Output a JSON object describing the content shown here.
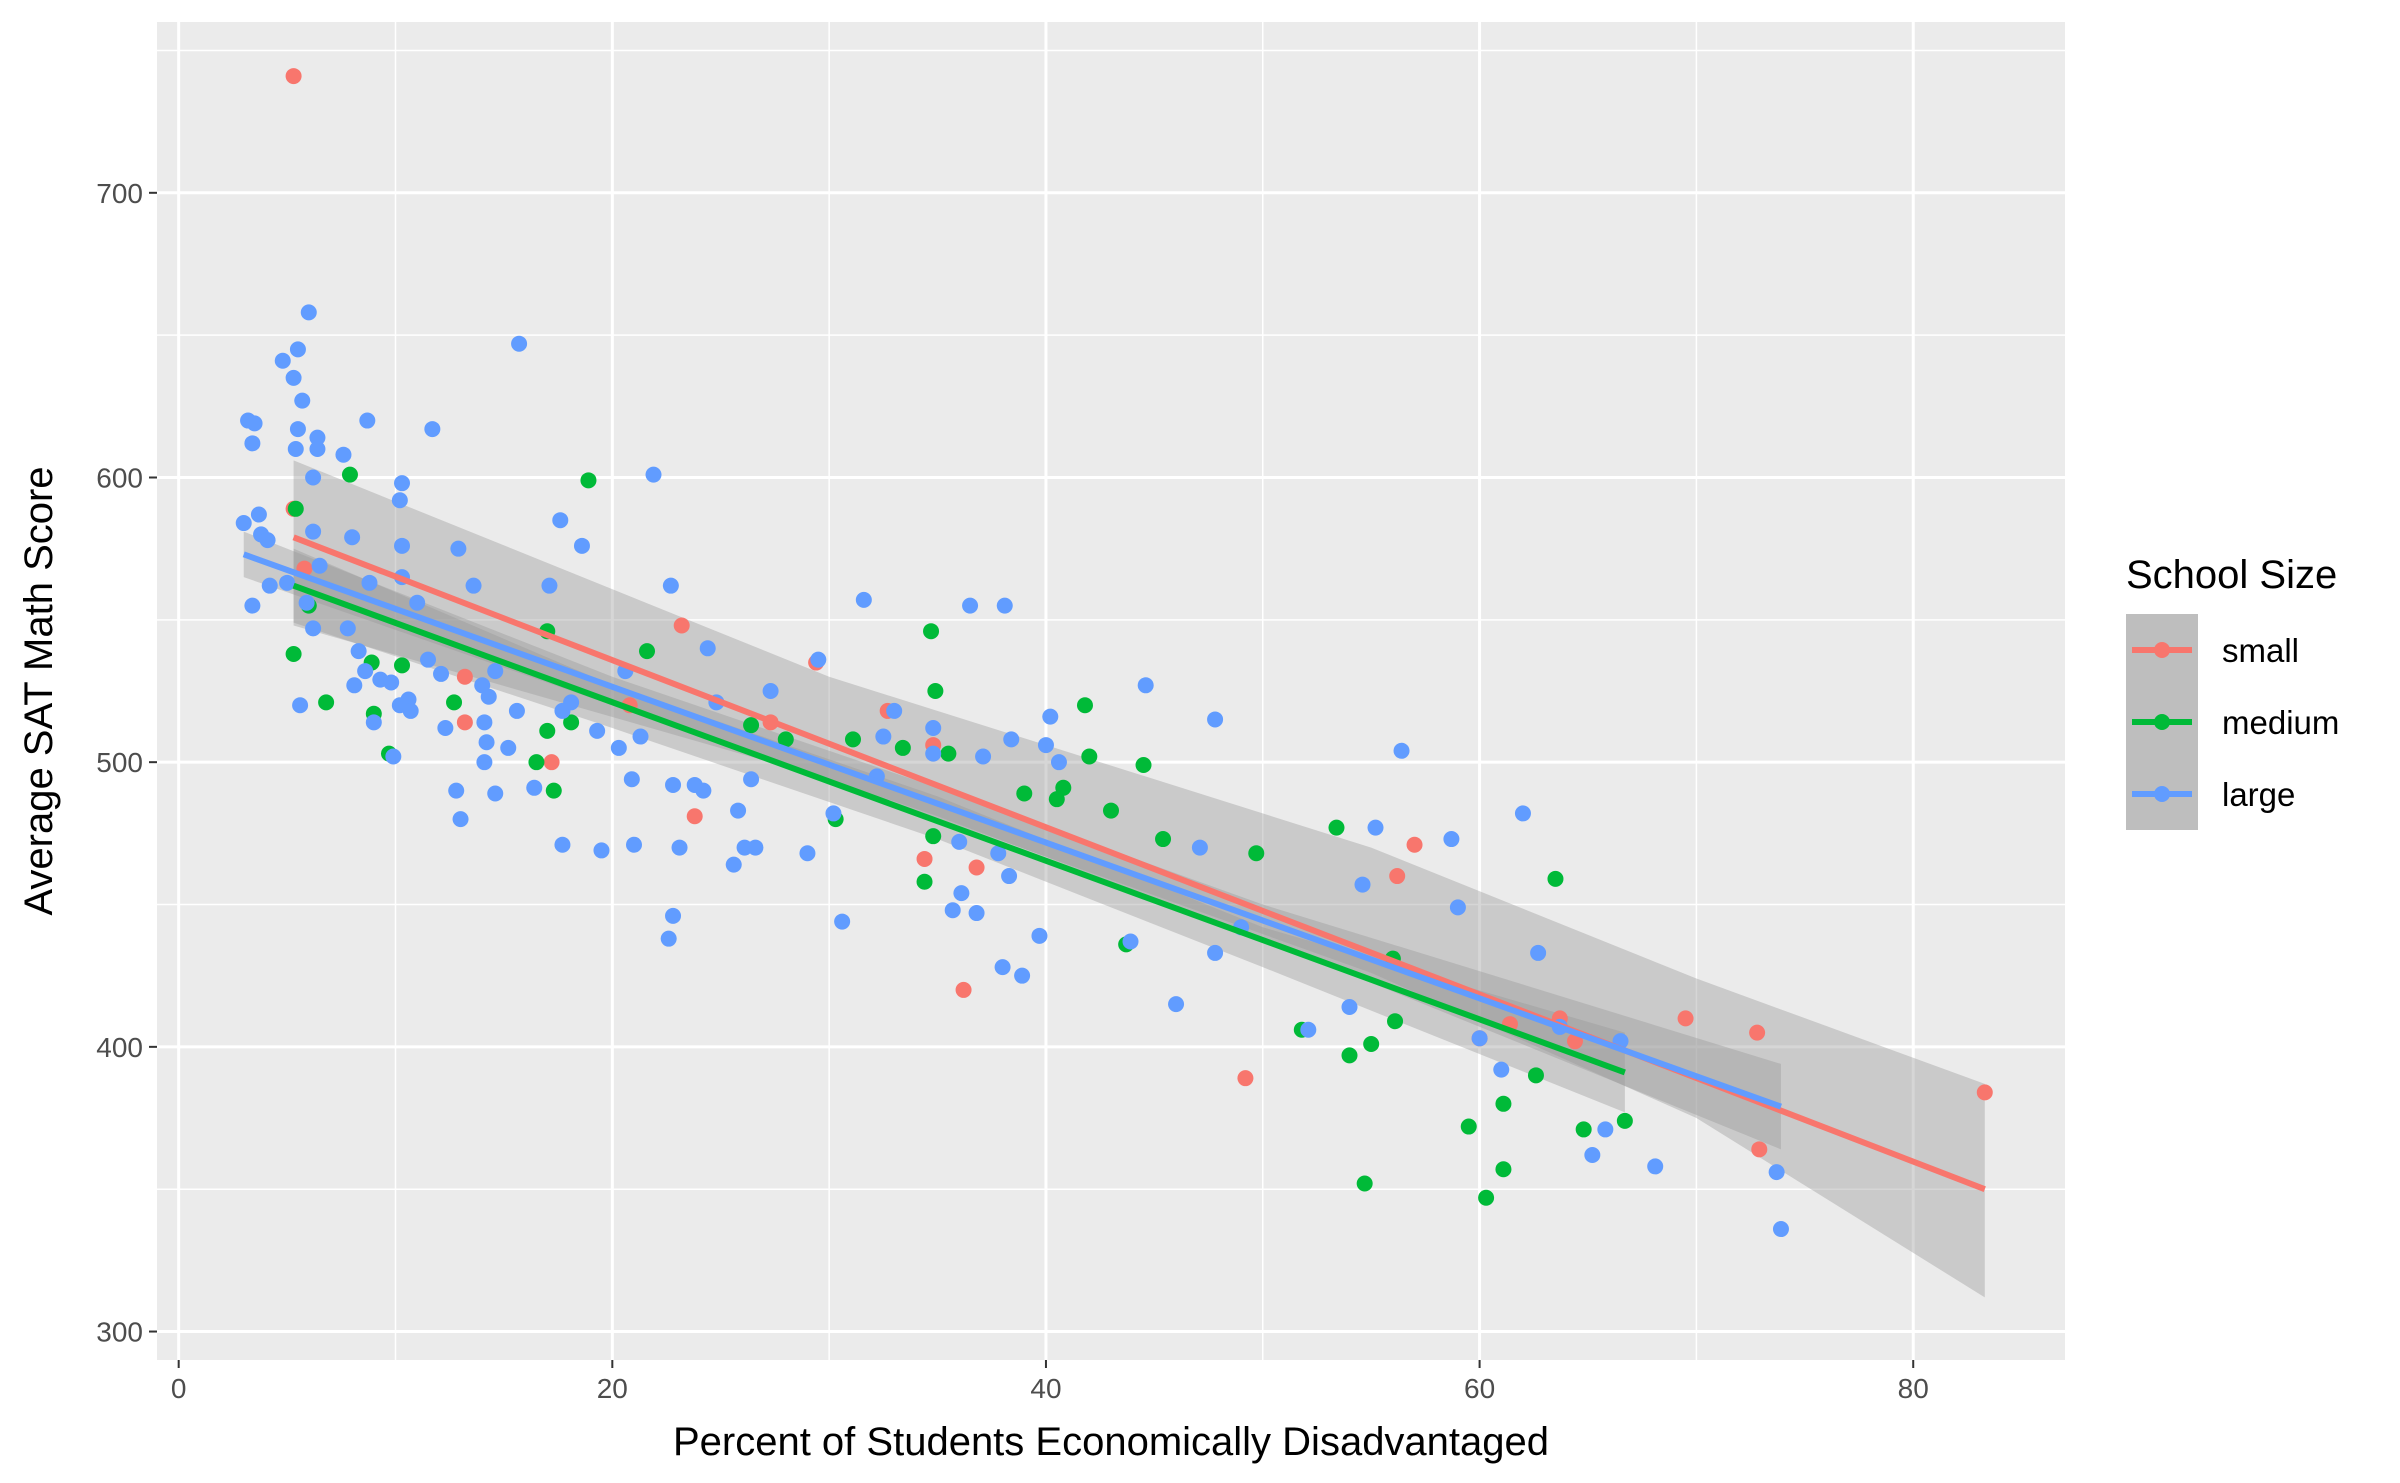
{
  "chart_data": {
    "type": "scatter",
    "title": "",
    "xlabel": "Percent of Students Economically Disadvantaged",
    "ylabel": "Average SAT Math Score",
    "xlim": [
      -1,
      87
    ],
    "ylim": [
      290,
      760
    ],
    "x_ticks": [
      0,
      20,
      40,
      60,
      80
    ],
    "x_tick_labels": [
      "0",
      "20",
      "40",
      "60",
      "80"
    ],
    "y_ticks": [
      300,
      400,
      500,
      600,
      700
    ],
    "y_tick_labels": [
      "300",
      "400",
      "500",
      "600",
      "700"
    ],
    "grid": true,
    "legend": {
      "title": "School Size",
      "position": "right"
    },
    "series": [
      {
        "name": "small",
        "color": "#F8766D",
        "points": [
          [
            5.3,
            741
          ],
          [
            5.3,
            589
          ],
          [
            5.8,
            568
          ],
          [
            13.2,
            514
          ],
          [
            13.2,
            530
          ],
          [
            17.2,
            500
          ],
          [
            20.8,
            520
          ],
          [
            23.2,
            548
          ],
          [
            23.8,
            481
          ],
          [
            27.3,
            514
          ],
          [
            29.4,
            535
          ],
          [
            32.7,
            518
          ],
          [
            34.4,
            466
          ],
          [
            34.8,
            506
          ],
          [
            36.2,
            420
          ],
          [
            36.8,
            463
          ],
          [
            49.2,
            389
          ],
          [
            56.2,
            460
          ],
          [
            57.0,
            471
          ],
          [
            60.0,
            403
          ],
          [
            61.4,
            408
          ],
          [
            63.7,
            410
          ],
          [
            64.4,
            402
          ],
          [
            69.5,
            410
          ],
          [
            72.8,
            405
          ],
          [
            72.9,
            364
          ],
          [
            83.3,
            384
          ]
        ],
        "fit": {
          "x0": 5.3,
          "x1": 83.3,
          "y0": 579,
          "y1": 350
        },
        "band": {
          "lower": [
            [
              5.3,
              548
            ],
            [
              30,
              494
            ],
            [
              55,
              426
            ],
            [
              70,
              375
            ],
            [
              83.3,
              312
            ]
          ],
          "upper": [
            [
              5.3,
              606
            ],
            [
              30,
              530
            ],
            [
              55,
              470
            ],
            [
              70,
              424
            ],
            [
              83.3,
              387
            ]
          ]
        }
      },
      {
        "name": "medium",
        "color": "#00BA38",
        "points": [
          [
            5.3,
            538
          ],
          [
            5.4,
            589
          ],
          [
            6.0,
            555
          ],
          [
            6.8,
            521
          ],
          [
            7.9,
            601
          ],
          [
            8.9,
            535
          ],
          [
            9.0,
            517
          ],
          [
            9.7,
            503
          ],
          [
            10.3,
            534
          ],
          [
            12.7,
            521
          ],
          [
            16.5,
            500
          ],
          [
            17.0,
            511
          ],
          [
            17.0,
            546
          ],
          [
            17.3,
            490
          ],
          [
            18.1,
            514
          ],
          [
            18.9,
            599
          ],
          [
            21.6,
            539
          ],
          [
            26.4,
            513
          ],
          [
            28.0,
            508
          ],
          [
            30.3,
            480
          ],
          [
            31.1,
            508
          ],
          [
            33.4,
            505
          ],
          [
            34.4,
            458
          ],
          [
            34.7,
            546
          ],
          [
            34.8,
            474
          ],
          [
            34.9,
            525
          ],
          [
            35.5,
            503
          ],
          [
            39.0,
            489
          ],
          [
            40.5,
            487
          ],
          [
            40.8,
            491
          ],
          [
            41.8,
            520
          ],
          [
            42.0,
            502
          ],
          [
            43.0,
            483
          ],
          [
            43.7,
            436
          ],
          [
            44.5,
            499
          ],
          [
            45.4,
            473
          ],
          [
            49.7,
            468
          ],
          [
            51.8,
            406
          ],
          [
            53.4,
            477
          ],
          [
            54.0,
            397
          ],
          [
            54.7,
            352
          ],
          [
            55.0,
            401
          ],
          [
            56.0,
            431
          ],
          [
            56.1,
            409
          ],
          [
            59.5,
            372
          ],
          [
            60.3,
            347
          ],
          [
            61.1,
            380
          ],
          [
            61.1,
            357
          ],
          [
            62.6,
            390
          ],
          [
            63.5,
            459
          ],
          [
            64.8,
            371
          ],
          [
            66.7,
            374
          ]
        ],
        "fit": {
          "x0": 5.3,
          "x1": 66.7,
          "y0": 562,
          "y1": 391
        },
        "band": {
          "lower": [
            [
              5.3,
              549
            ],
            [
              20,
              512
            ],
            [
              35,
              473
            ],
            [
              50,
              428
            ],
            [
              66.7,
              377
            ]
          ],
          "upper": [
            [
              5.3,
              575
            ],
            [
              20,
              527
            ],
            [
              35,
              488
            ],
            [
              50,
              442
            ],
            [
              66.7,
              405
            ]
          ]
        }
      },
      {
        "name": "large",
        "color": "#619CFF",
        "points": [
          [
            3.0,
            584
          ],
          [
            3.2,
            620
          ],
          [
            3.4,
            555
          ],
          [
            3.4,
            612
          ],
          [
            3.5,
            619
          ],
          [
            3.7,
            587
          ],
          [
            3.8,
            580
          ],
          [
            4.1,
            578
          ],
          [
            4.2,
            562
          ],
          [
            4.8,
            641
          ],
          [
            5.0,
            563
          ],
          [
            5.3,
            635
          ],
          [
            5.4,
            610
          ],
          [
            5.5,
            645
          ],
          [
            5.5,
            617
          ],
          [
            5.6,
            520
          ],
          [
            5.7,
            627
          ],
          [
            5.9,
            556
          ],
          [
            6.0,
            658
          ],
          [
            6.2,
            547
          ],
          [
            6.2,
            600
          ],
          [
            6.2,
            581
          ],
          [
            6.4,
            614
          ],
          [
            6.4,
            610
          ],
          [
            6.5,
            569
          ],
          [
            7.6,
            608
          ],
          [
            7.8,
            547
          ],
          [
            8.0,
            579
          ],
          [
            8.1,
            527
          ],
          [
            8.3,
            539
          ],
          [
            8.6,
            532
          ],
          [
            8.7,
            620
          ],
          [
            8.8,
            563
          ],
          [
            9.0,
            514
          ],
          [
            9.3,
            529
          ],
          [
            9.8,
            528
          ],
          [
            9.9,
            502
          ],
          [
            10.2,
            520
          ],
          [
            10.2,
            592
          ],
          [
            10.3,
            598
          ],
          [
            10.3,
            576
          ],
          [
            10.3,
            565
          ],
          [
            10.5,
            520
          ],
          [
            10.6,
            522
          ],
          [
            10.7,
            518
          ],
          [
            11.0,
            556
          ],
          [
            11.5,
            536
          ],
          [
            11.7,
            617
          ],
          [
            12.1,
            531
          ],
          [
            12.3,
            512
          ],
          [
            12.8,
            490
          ],
          [
            12.9,
            575
          ],
          [
            13.0,
            480
          ],
          [
            13.6,
            562
          ],
          [
            14.0,
            527
          ],
          [
            14.1,
            500
          ],
          [
            14.1,
            514
          ],
          [
            14.2,
            507
          ],
          [
            14.3,
            523
          ],
          [
            14.6,
            489
          ],
          [
            14.6,
            532
          ],
          [
            15.2,
            505
          ],
          [
            15.6,
            518
          ],
          [
            15.7,
            647
          ],
          [
            16.4,
            491
          ],
          [
            17.1,
            562
          ],
          [
            17.6,
            585
          ],
          [
            17.7,
            518
          ],
          [
            17.7,
            471
          ],
          [
            18.1,
            521
          ],
          [
            18.6,
            576
          ],
          [
            19.3,
            511
          ],
          [
            19.5,
            469
          ],
          [
            20.3,
            505
          ],
          [
            20.6,
            532
          ],
          [
            20.9,
            494
          ],
          [
            21.0,
            471
          ],
          [
            21.3,
            509
          ],
          [
            21.9,
            601
          ],
          [
            22.6,
            438
          ],
          [
            22.7,
            562
          ],
          [
            22.8,
            446
          ],
          [
            22.8,
            492
          ],
          [
            23.1,
            470
          ],
          [
            23.8,
            492
          ],
          [
            24.2,
            490
          ],
          [
            24.4,
            540
          ],
          [
            24.8,
            521
          ],
          [
            25.6,
            464
          ],
          [
            25.8,
            483
          ],
          [
            26.1,
            470
          ],
          [
            26.4,
            494
          ],
          [
            26.6,
            470
          ],
          [
            27.3,
            525
          ],
          [
            29.0,
            468
          ],
          [
            29.5,
            536
          ],
          [
            30.2,
            482
          ],
          [
            30.6,
            444
          ],
          [
            31.6,
            557
          ],
          [
            32.2,
            495
          ],
          [
            32.5,
            509
          ],
          [
            33.0,
            518
          ],
          [
            34.8,
            512
          ],
          [
            34.8,
            503
          ],
          [
            35.7,
            448
          ],
          [
            36.0,
            472
          ],
          [
            36.1,
            454
          ],
          [
            36.5,
            555
          ],
          [
            36.8,
            447
          ],
          [
            37.1,
            502
          ],
          [
            37.8,
            468
          ],
          [
            38.0,
            428
          ],
          [
            38.1,
            555
          ],
          [
            38.3,
            460
          ],
          [
            38.4,
            508
          ],
          [
            38.9,
            425
          ],
          [
            39.7,
            439
          ],
          [
            40.0,
            506
          ],
          [
            40.2,
            516
          ],
          [
            40.6,
            500
          ],
          [
            43.9,
            437
          ],
          [
            44.6,
            527
          ],
          [
            46.0,
            415
          ],
          [
            47.1,
            470
          ],
          [
            47.8,
            433
          ],
          [
            47.8,
            515
          ],
          [
            49.0,
            442
          ],
          [
            52.1,
            406
          ],
          [
            54.0,
            414
          ],
          [
            54.6,
            457
          ],
          [
            55.2,
            477
          ],
          [
            56.4,
            504
          ],
          [
            58.7,
            473
          ],
          [
            59.0,
            449
          ],
          [
            60.0,
            403
          ],
          [
            61.0,
            392
          ],
          [
            62.0,
            482
          ],
          [
            62.7,
            433
          ],
          [
            63.7,
            407
          ],
          [
            65.2,
            362
          ],
          [
            65.8,
            371
          ],
          [
            66.5,
            402
          ],
          [
            68.1,
            358
          ],
          [
            73.7,
            356
          ],
          [
            73.9,
            336
          ]
        ],
        "fit": {
          "x0": 3.0,
          "x1": 73.9,
          "y0": 573,
          "y1": 379
        },
        "band": {
          "lower": [
            [
              3.0,
              565
            ],
            [
              20,
              520
            ],
            [
              35,
              481
            ],
            [
              50,
              438
            ],
            [
              73.9,
              364
            ]
          ],
          "upper": [
            [
              3.0,
              581
            ],
            [
              20,
              530
            ],
            [
              35,
              491
            ],
            [
              50,
              450
            ],
            [
              73.9,
              394
            ]
          ]
        }
      }
    ]
  }
}
